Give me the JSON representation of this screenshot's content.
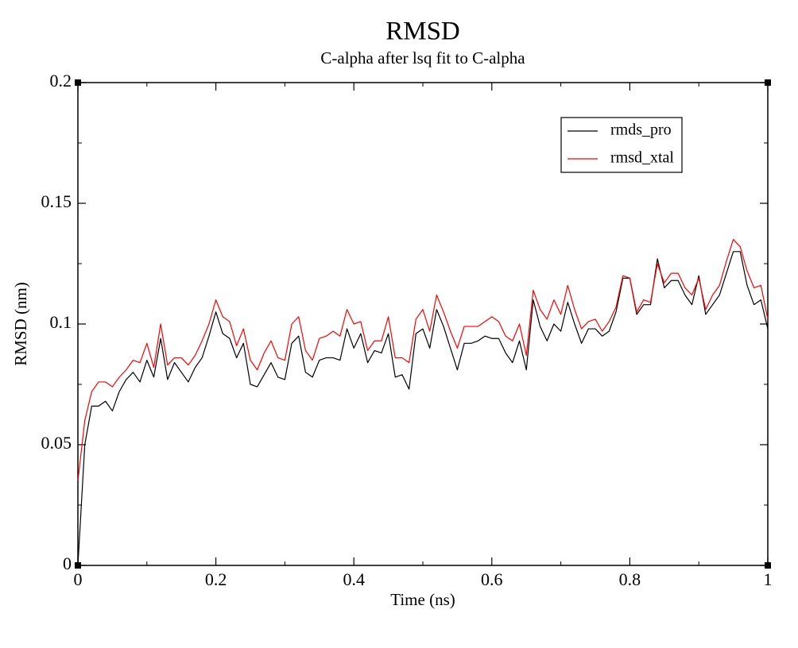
{
  "chart_data": {
    "type": "line",
    "title": "RMSD",
    "subtitle": "C-alpha after lsq fit to C-alpha",
    "xlabel": "Time (ns)",
    "ylabel": "RMSD (nm)",
    "x": [
      0,
      0.01,
      0.02,
      0.03,
      0.04,
      0.05,
      0.06,
      0.07,
      0.08,
      0.09,
      0.1,
      0.11,
      0.12,
      0.13,
      0.14,
      0.15,
      0.16,
      0.17,
      0.18,
      0.19,
      0.2,
      0.21,
      0.22,
      0.23,
      0.24,
      0.25,
      0.26,
      0.27,
      0.28,
      0.29,
      0.3,
      0.31,
      0.32,
      0.33,
      0.34,
      0.35,
      0.36,
      0.37,
      0.38,
      0.39,
      0.4,
      0.41,
      0.42,
      0.43,
      0.44,
      0.45,
      0.46,
      0.47,
      0.48,
      0.49,
      0.5,
      0.51,
      0.52,
      0.53,
      0.54,
      0.55,
      0.56,
      0.57,
      0.58,
      0.59,
      0.6,
      0.61,
      0.62,
      0.63,
      0.64,
      0.65,
      0.66,
      0.67,
      0.68,
      0.69,
      0.7,
      0.71,
      0.72,
      0.73,
      0.74,
      0.75,
      0.76,
      0.77,
      0.78,
      0.79,
      0.8,
      0.81,
      0.82,
      0.83,
      0.84,
      0.85,
      0.86,
      0.87,
      0.88,
      0.89,
      0.9,
      0.91,
      0.92,
      0.93,
      0.94,
      0.95,
      0.96,
      0.97,
      0.98,
      0.99,
      1
    ],
    "series": [
      {
        "name": "rmds_pro",
        "color": "#000000",
        "values": [
          0.0,
          0.05,
          0.066,
          0.066,
          0.068,
          0.064,
          0.072,
          0.077,
          0.08,
          0.076,
          0.085,
          0.078,
          0.094,
          0.077,
          0.084,
          0.08,
          0.076,
          0.082,
          0.086,
          0.095,
          0.105,
          0.096,
          0.094,
          0.086,
          0.092,
          0.075,
          0.074,
          0.079,
          0.084,
          0.078,
          0.077,
          0.092,
          0.095,
          0.08,
          0.078,
          0.085,
          0.086,
          0.086,
          0.085,
          0.098,
          0.09,
          0.096,
          0.084,
          0.089,
          0.088,
          0.096,
          0.078,
          0.079,
          0.073,
          0.096,
          0.098,
          0.09,
          0.106,
          0.099,
          0.09,
          0.081,
          0.092,
          0.092,
          0.093,
          0.095,
          0.094,
          0.094,
          0.088,
          0.084,
          0.093,
          0.081,
          0.11,
          0.099,
          0.093,
          0.1,
          0.097,
          0.109,
          0.1,
          0.092,
          0.098,
          0.098,
          0.095,
          0.097,
          0.105,
          0.119,
          0.119,
          0.104,
          0.108,
          0.108,
          0.127,
          0.115,
          0.118,
          0.118,
          0.112,
          0.108,
          0.12,
          0.104,
          0.108,
          0.112,
          0.121,
          0.13,
          0.13,
          0.116,
          0.108,
          0.11,
          0.098
        ]
      },
      {
        "name": "rmsd_xtal",
        "color": "#ff0000",
        "values": [
          0.035,
          0.06,
          0.072,
          0.076,
          0.076,
          0.074,
          0.078,
          0.081,
          0.085,
          0.084,
          0.092,
          0.082,
          0.1,
          0.083,
          0.086,
          0.086,
          0.083,
          0.087,
          0.093,
          0.1,
          0.11,
          0.103,
          0.101,
          0.091,
          0.098,
          0.085,
          0.081,
          0.088,
          0.093,
          0.086,
          0.085,
          0.1,
          0.103,
          0.089,
          0.085,
          0.094,
          0.095,
          0.097,
          0.095,
          0.106,
          0.1,
          0.101,
          0.089,
          0.093,
          0.093,
          0.103,
          0.086,
          0.086,
          0.084,
          0.102,
          0.106,
          0.097,
          0.112,
          0.105,
          0.097,
          0.09,
          0.099,
          0.099,
          0.099,
          0.101,
          0.103,
          0.101,
          0.095,
          0.093,
          0.1,
          0.087,
          0.114,
          0.106,
          0.102,
          0.11,
          0.104,
          0.116,
          0.106,
          0.098,
          0.101,
          0.102,
          0.097,
          0.101,
          0.107,
          0.12,
          0.119,
          0.105,
          0.11,
          0.109,
          0.125,
          0.117,
          0.121,
          0.121,
          0.115,
          0.112,
          0.119,
          0.106,
          0.112,
          0.116,
          0.126,
          0.135,
          0.132,
          0.122,
          0.115,
          0.116,
          0.102
        ]
      }
    ],
    "xlim": [
      0,
      1
    ],
    "xticks": [
      0,
      0.2,
      0.4,
      0.6,
      0.8,
      1
    ],
    "ylim": [
      0,
      0.2
    ],
    "yticks": [
      0,
      0.05,
      0.1,
      0.15,
      0.2
    ],
    "grid": false,
    "legend": "upper right"
  }
}
